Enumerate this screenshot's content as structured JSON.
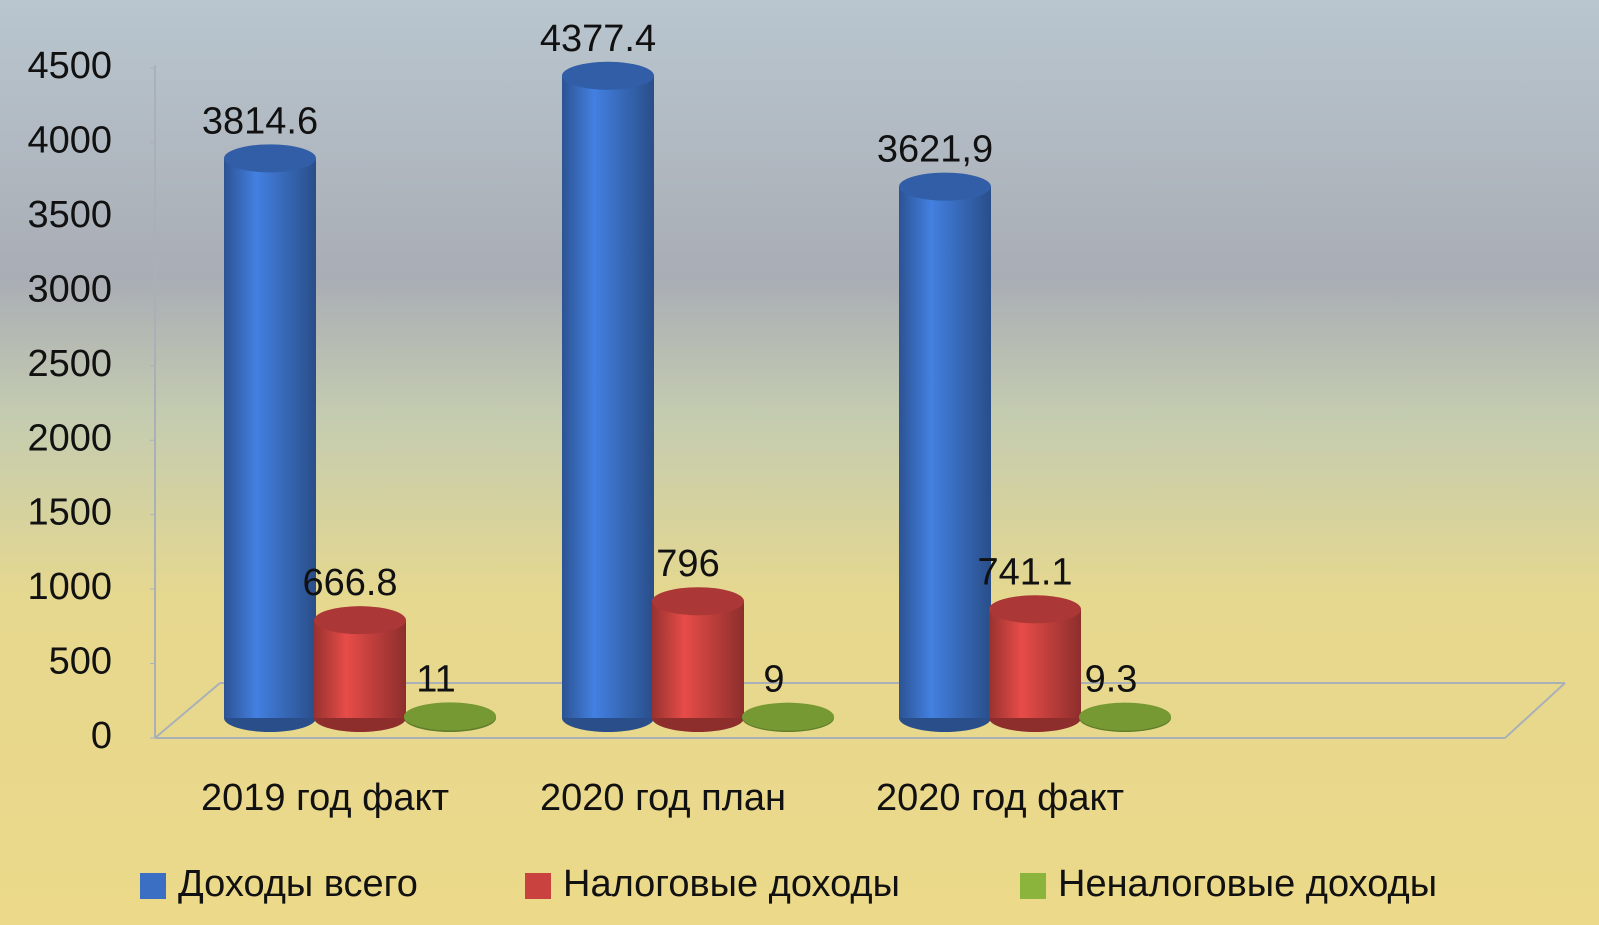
{
  "chart_data": {
    "type": "bar3d",
    "categories": [
      "2019 год факт",
      "2020 год план",
      "2020 год факт"
    ],
    "series": [
      {
        "name": "Доходы всего",
        "color": "#3a6fc4",
        "values": [
          3814.6,
          4377.4,
          3621.9
        ],
        "value_labels": [
          "3814.6",
          "4377.4",
          "3621,9"
        ]
      },
      {
        "name": "Налоговые доходы",
        "color": "#c9423f",
        "values": [
          666.8,
          796,
          741.1
        ]
      },
      {
        "name": "Неналоговые доходы",
        "color": "#8bb43c",
        "values": [
          11,
          9,
          9.3
        ]
      }
    ],
    "ylim": [
      0,
      4500
    ],
    "yticks": [
      0,
      500,
      1000,
      1500,
      2000,
      2500,
      3000,
      3500,
      4000,
      4500
    ],
    "grid": false,
    "legend": "bottom"
  }
}
